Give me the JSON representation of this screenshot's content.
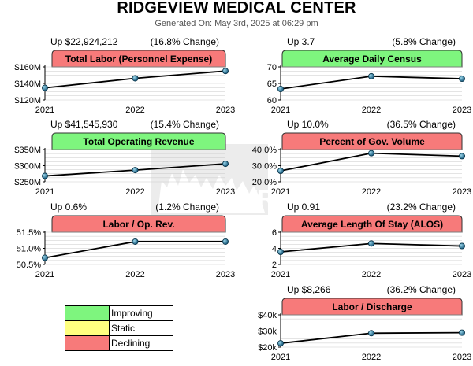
{
  "header": {
    "title": "RIDGEVIEW MEDICAL CENTER",
    "subtitle": "Generated On: May 3rd, 2025 at 06:29 pm"
  },
  "colors": {
    "improving": "#7ef57e",
    "static": "#ffff80",
    "declining": "#f77a7a"
  },
  "legend": [
    {
      "label": "Improving",
      "status": "improving"
    },
    {
      "label": "Static",
      "status": "static"
    },
    {
      "label": "Declining",
      "status": "declining"
    }
  ],
  "chart_data": [
    {
      "type": "line",
      "title": "Total Labor (Personnel Expense)",
      "status": "declining",
      "change": "Up $22,924,212",
      "pct": "(16.8% Change)",
      "x": [
        "2021",
        "2022",
        "2023"
      ],
      "values": [
        136.5,
        149.5,
        159.4
      ],
      "ylim": [
        120,
        165
      ],
      "yticks": [
        "$120M",
        "$140M",
        "$160M"
      ]
    },
    {
      "type": "line",
      "title": "Average Daily Census",
      "status": "improving",
      "change": "Up 3.7",
      "pct": "(5.8% Change)",
      "x": [
        "2021",
        "2022",
        "2023"
      ],
      "values": [
        64.0,
        68.6,
        67.7
      ],
      "ylim": [
        60,
        72
      ],
      "yticks": [
        "60",
        "65",
        "70"
      ]
    },
    {
      "type": "line",
      "title": "Total Operating Revenue",
      "status": "improving",
      "change": "Up $41,545,930",
      "pct": "(15.4% Change)",
      "x": [
        "2021",
        "2022",
        "2023"
      ],
      "values": [
        270.0,
        290.0,
        311.5
      ],
      "ylim": [
        250,
        360
      ],
      "yticks": [
        "$250M",
        "$300M",
        "$350M"
      ]
    },
    {
      "type": "line",
      "title": "Percent of Gov. Volume",
      "status": "declining",
      "change": "Up 10.0%",
      "pct": "(36.5% Change)",
      "x": [
        "2021",
        "2022",
        "2023"
      ],
      "values": [
        27.5,
        39.5,
        37.5
      ],
      "ylim": [
        20,
        42
      ],
      "yticks": [
        "20.0%",
        "30.0%",
        "40.0%"
      ]
    },
    {
      "type": "line",
      "title": "Labor / Op. Rev.",
      "status": "declining",
      "change": "Up 0.6%",
      "pct": "(1.2% Change)",
      "x": [
        "2021",
        "2022",
        "2023"
      ],
      "values": [
        50.75,
        51.35,
        51.35
      ],
      "ylim": [
        50.5,
        51.7
      ],
      "yticks": [
        "50.5%",
        "51.0%",
        "51.5%"
      ]
    },
    {
      "type": "line",
      "title": "Average Length Of Stay (ALOS)",
      "status": "declining",
      "change": "Up 0.91",
      "pct": "(23.2% Change)",
      "x": [
        "2021",
        "2022",
        "2023"
      ],
      "values": [
        3.95,
        5.25,
        4.86
      ],
      "ylim": [
        2,
        7
      ],
      "yticks": [
        "2",
        "4",
        "6"
      ]
    },
    {
      "type": "line",
      "title": "Labor / Discharge",
      "status": "declining",
      "change": "Up $8,266",
      "pct": "(36.2% Change)",
      "x": [
        "2021",
        "2022",
        "2023"
      ],
      "values": [
        23000,
        30800,
        31200
      ],
      "ylim": [
        20000,
        45000
      ],
      "yticks": [
        "$20k",
        "$30k",
        "$40k"
      ]
    }
  ]
}
